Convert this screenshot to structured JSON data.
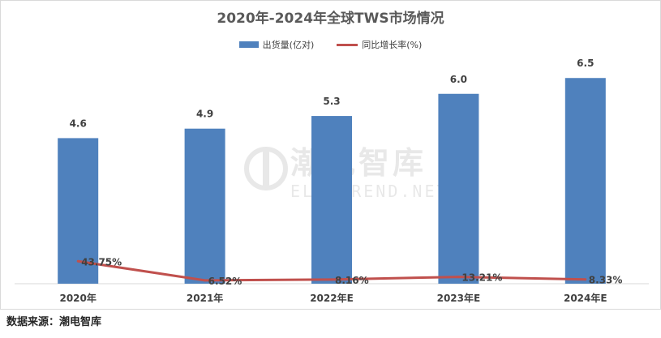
{
  "chart_data": {
    "type": "bar",
    "title": "2020年-2024年全球TWS市场情况",
    "categories": [
      "2020年",
      "2021年",
      "2022年E",
      "2023年E",
      "2024年E"
    ],
    "series": [
      {
        "name": "出货量(亿对)",
        "type": "bar",
        "color": "#4f81bd",
        "values": [
          4.6,
          4.9,
          5.3,
          6.0,
          6.5
        ],
        "labels": [
          "4.6",
          "4.9",
          "5.3",
          "6.0",
          "6.5"
        ]
      },
      {
        "name": "同比增长率(%)",
        "type": "line",
        "color": "#c0504d",
        "values": [
          43.75,
          6.52,
          8.16,
          13.21,
          8.33
        ],
        "labels": [
          "43.75%",
          "6.52%",
          "8.16%",
          "13.21%",
          "8.33%"
        ]
      }
    ],
    "bar_ylim": [
      0,
      7.3
    ],
    "line_ylim": [
      0,
      450
    ],
    "legend_position": "top"
  },
  "watermark": {
    "cn": "潮电智库",
    "en": "ELECTREND.NET"
  },
  "source": "数据来源：潮电智库"
}
